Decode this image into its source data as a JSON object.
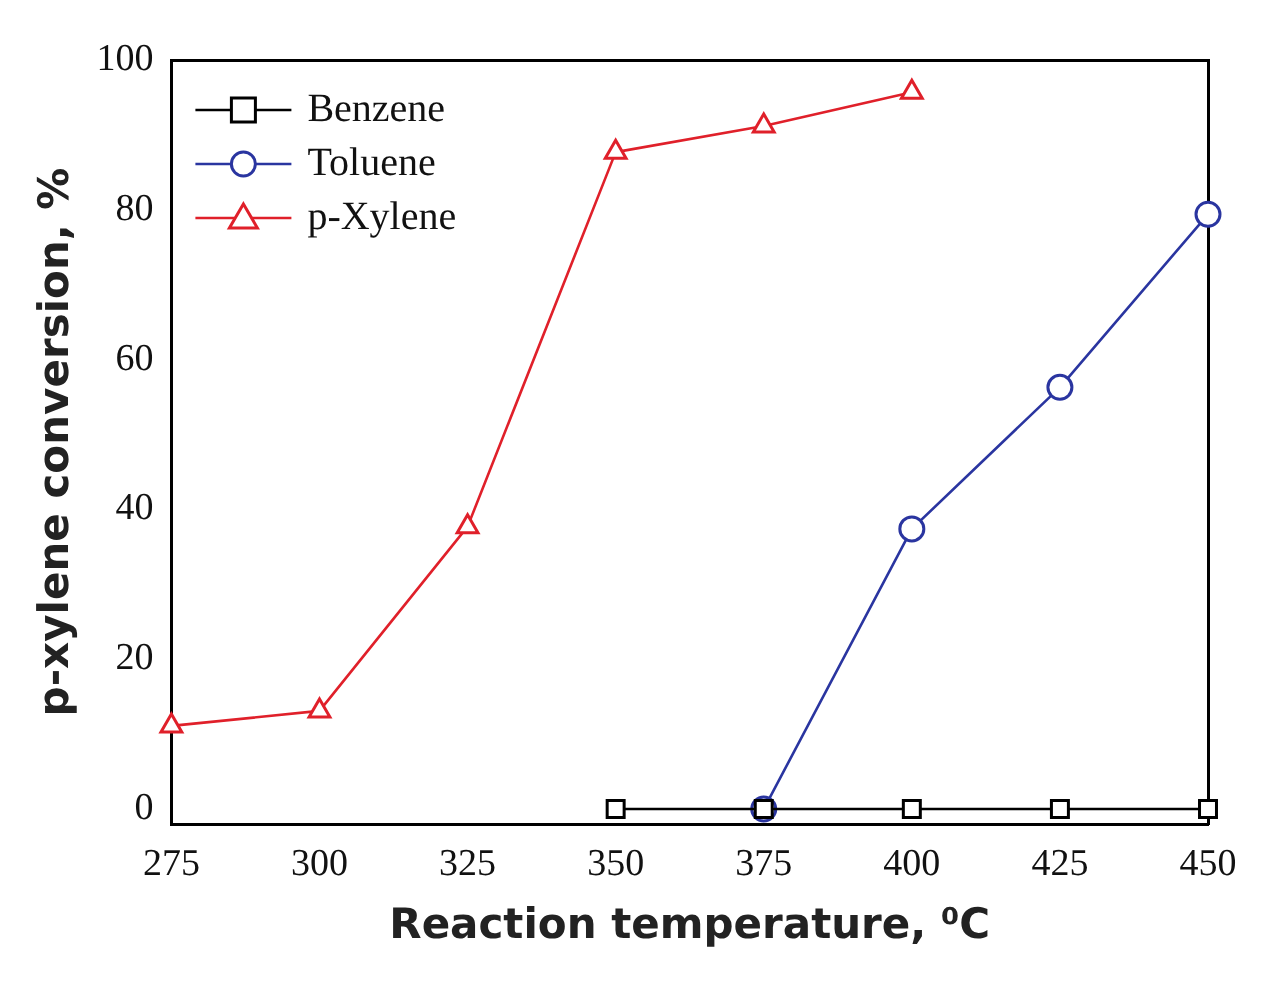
{
  "chart_data": {
    "type": "line",
    "xlabel": "Reaction temperature, ⁰C",
    "ylabel": "p-xylene conversion, %",
    "xlim": [
      275,
      450
    ],
    "xticks": [
      275,
      300,
      325,
      350,
      375,
      400,
      425,
      450
    ],
    "ylim": [
      -2,
      100
    ],
    "yticks": [
      0,
      20,
      40,
      60,
      80,
      100
    ],
    "legend": "top left",
    "grid": false,
    "line_style": "solid",
    "series": [
      {
        "name": "Benzene",
        "color": "#000000",
        "marker": "square",
        "x": [
          350,
          375,
          400,
          425,
          450
        ],
        "values": [
          0,
          0,
          0,
          0,
          0
        ]
      },
      {
        "name": "Toluene",
        "color": "#2a35a0",
        "marker": "circle",
        "x": [
          375,
          400,
          425,
          450
        ],
        "values": [
          0,
          37.4,
          56.3,
          79.4
        ]
      },
      {
        "name": "p-Xylene",
        "color": "#e0202a",
        "marker": "triangle",
        "x": [
          275,
          300,
          325,
          350,
          375,
          400
        ],
        "values": [
          11.1,
          13.1,
          37.7,
          87.7,
          91.2,
          95.7
        ]
      }
    ]
  }
}
